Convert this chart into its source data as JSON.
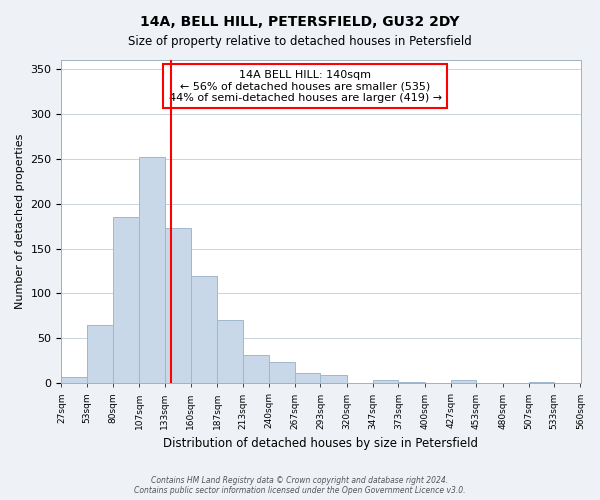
{
  "title": "14A, BELL HILL, PETERSFIELD, GU32 2DY",
  "subtitle": "Size of property relative to detached houses in Petersfield",
  "xlabel": "Distribution of detached houses by size in Petersfield",
  "ylabel": "Number of detached properties",
  "bar_color": "#c8d8e8",
  "bar_edge_color": "#a0b8cc",
  "vline_color": "red",
  "vline_x": 140,
  "annotation_title": "14A BELL HILL: 140sqm",
  "annotation_line1": "← 56% of detached houses are smaller (535)",
  "annotation_line2": "44% of semi-detached houses are larger (419) →",
  "annotation_box_color": "white",
  "annotation_box_edge": "red",
  "bin_edges": [
    27,
    53,
    80,
    107,
    133,
    160,
    187,
    213,
    240,
    267,
    293,
    320,
    347,
    373,
    400,
    427,
    453,
    480,
    507,
    533,
    560
  ],
  "bin_counts": [
    7,
    65,
    185,
    252,
    173,
    119,
    71,
    31,
    24,
    11,
    9,
    0,
    4,
    1,
    0,
    4,
    0,
    0,
    1,
    0
  ],
  "ylim": [
    0,
    360
  ],
  "yticks": [
    0,
    50,
    100,
    150,
    200,
    250,
    300,
    350
  ],
  "tick_labels": [
    "27sqm",
    "53sqm",
    "80sqm",
    "107sqm",
    "133sqm",
    "160sqm",
    "187sqm",
    "213sqm",
    "240sqm",
    "267sqm",
    "293sqm",
    "320sqm",
    "347sqm",
    "373sqm",
    "400sqm",
    "427sqm",
    "453sqm",
    "480sqm",
    "507sqm",
    "533sqm",
    "560sqm"
  ],
  "footer_line1": "Contains HM Land Registry data © Crown copyright and database right 2024.",
  "footer_line2": "Contains public sector information licensed under the Open Government Licence v3.0.",
  "background_color": "#eef2f7",
  "plot_background": "white",
  "grid_color": "#c8d4e0"
}
